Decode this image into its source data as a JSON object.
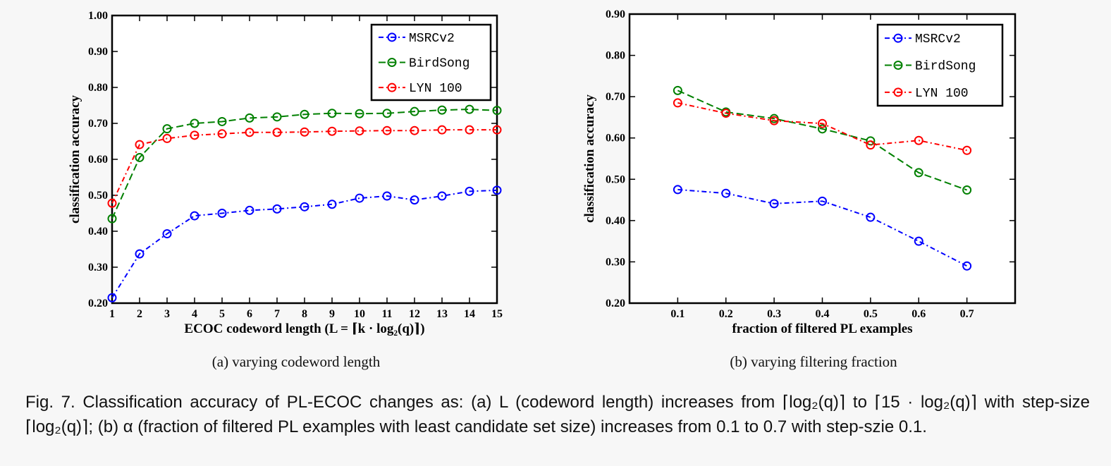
{
  "chart_data": [
    {
      "type": "line",
      "ylabel": "classification accuracy",
      "xlabel": "ECOC codeword length (L = ⌈k · log₂(q)⌉)",
      "xlim": [
        1,
        15
      ],
      "ylim": [
        0.2,
        1.0
      ],
      "yticks": [
        "0.20",
        "0.30",
        "0.40",
        "0.50",
        "0.60",
        "0.70",
        "0.80",
        "0.90",
        "1.00"
      ],
      "x": [
        1,
        2,
        3,
        4,
        5,
        6,
        7,
        8,
        9,
        10,
        11,
        12,
        13,
        14,
        15
      ],
      "legend_position": "top-right",
      "subcaption": "(a) varying codeword length",
      "series": [
        {
          "name": "MSRCv2",
          "color": "#0000ff",
          "dash": "7,4,2,4",
          "values": [
            0.215,
            0.337,
            0.393,
            0.443,
            0.45,
            0.458,
            0.462,
            0.468,
            0.475,
            0.492,
            0.498,
            0.487,
            0.498,
            0.511,
            0.514
          ]
        },
        {
          "name": "BirdSong",
          "color": "#008000",
          "dash": "10,5",
          "values": [
            0.435,
            0.605,
            0.685,
            0.7,
            0.705,
            0.715,
            0.718,
            0.725,
            0.728,
            0.727,
            0.728,
            0.733,
            0.737,
            0.739,
            0.736
          ]
        },
        {
          "name": "LYN 100",
          "color": "#ff0000",
          "dash": "7,4,2,4",
          "values": [
            0.478,
            0.641,
            0.658,
            0.667,
            0.671,
            0.675,
            0.675,
            0.676,
            0.678,
            0.679,
            0.68,
            0.68,
            0.682,
            0.682,
            0.682
          ]
        }
      ]
    },
    {
      "type": "line",
      "ylabel": "classification accuracy",
      "xlabel": "fraction of filtered PL examples",
      "xlim": [
        0.0,
        0.8
      ],
      "ylim": [
        0.2,
        0.9
      ],
      "yticks": [
        "0.20",
        "0.30",
        "0.40",
        "0.50",
        "0.60",
        "0.70",
        "0.80",
        "0.90"
      ],
      "x": [
        0.1,
        0.2,
        0.3,
        0.4,
        0.5,
        0.6,
        0.7
      ],
      "xticks": [
        "0.1",
        "0.2",
        "0.3",
        "0.4",
        "0.5",
        "0.6",
        "0.7"
      ],
      "legend_position": "top-right",
      "subcaption": "(b) varying filtering fraction",
      "series": [
        {
          "name": "MSRCv2",
          "color": "#0000ff",
          "dash": "7,4,2,4",
          "values": [
            0.475,
            0.466,
            0.441,
            0.447,
            0.408,
            0.35,
            0.29
          ]
        },
        {
          "name": "BirdSong",
          "color": "#008000",
          "dash": "10,5",
          "values": [
            0.715,
            0.663,
            0.647,
            0.622,
            0.593,
            0.516,
            0.474
          ]
        },
        {
          "name": "LYN 100",
          "color": "#ff0000",
          "dash": "7,4,2,4",
          "values": [
            0.685,
            0.66,
            0.642,
            0.635,
            0.583,
            0.594,
            0.57
          ]
        }
      ]
    }
  ],
  "caption": "Fig. 7.  Classification accuracy of PL-ECOC changes as: (a) L (codeword length) increases from ⌈log₂(q)⌉ to ⌈15 · log₂(q)⌉ with step-size ⌈log₂(q)⌉; (b) α (fraction of filtered PL examples with least candidate set size) increases from 0.1 to 0.7 with step-szie 0.1."
}
